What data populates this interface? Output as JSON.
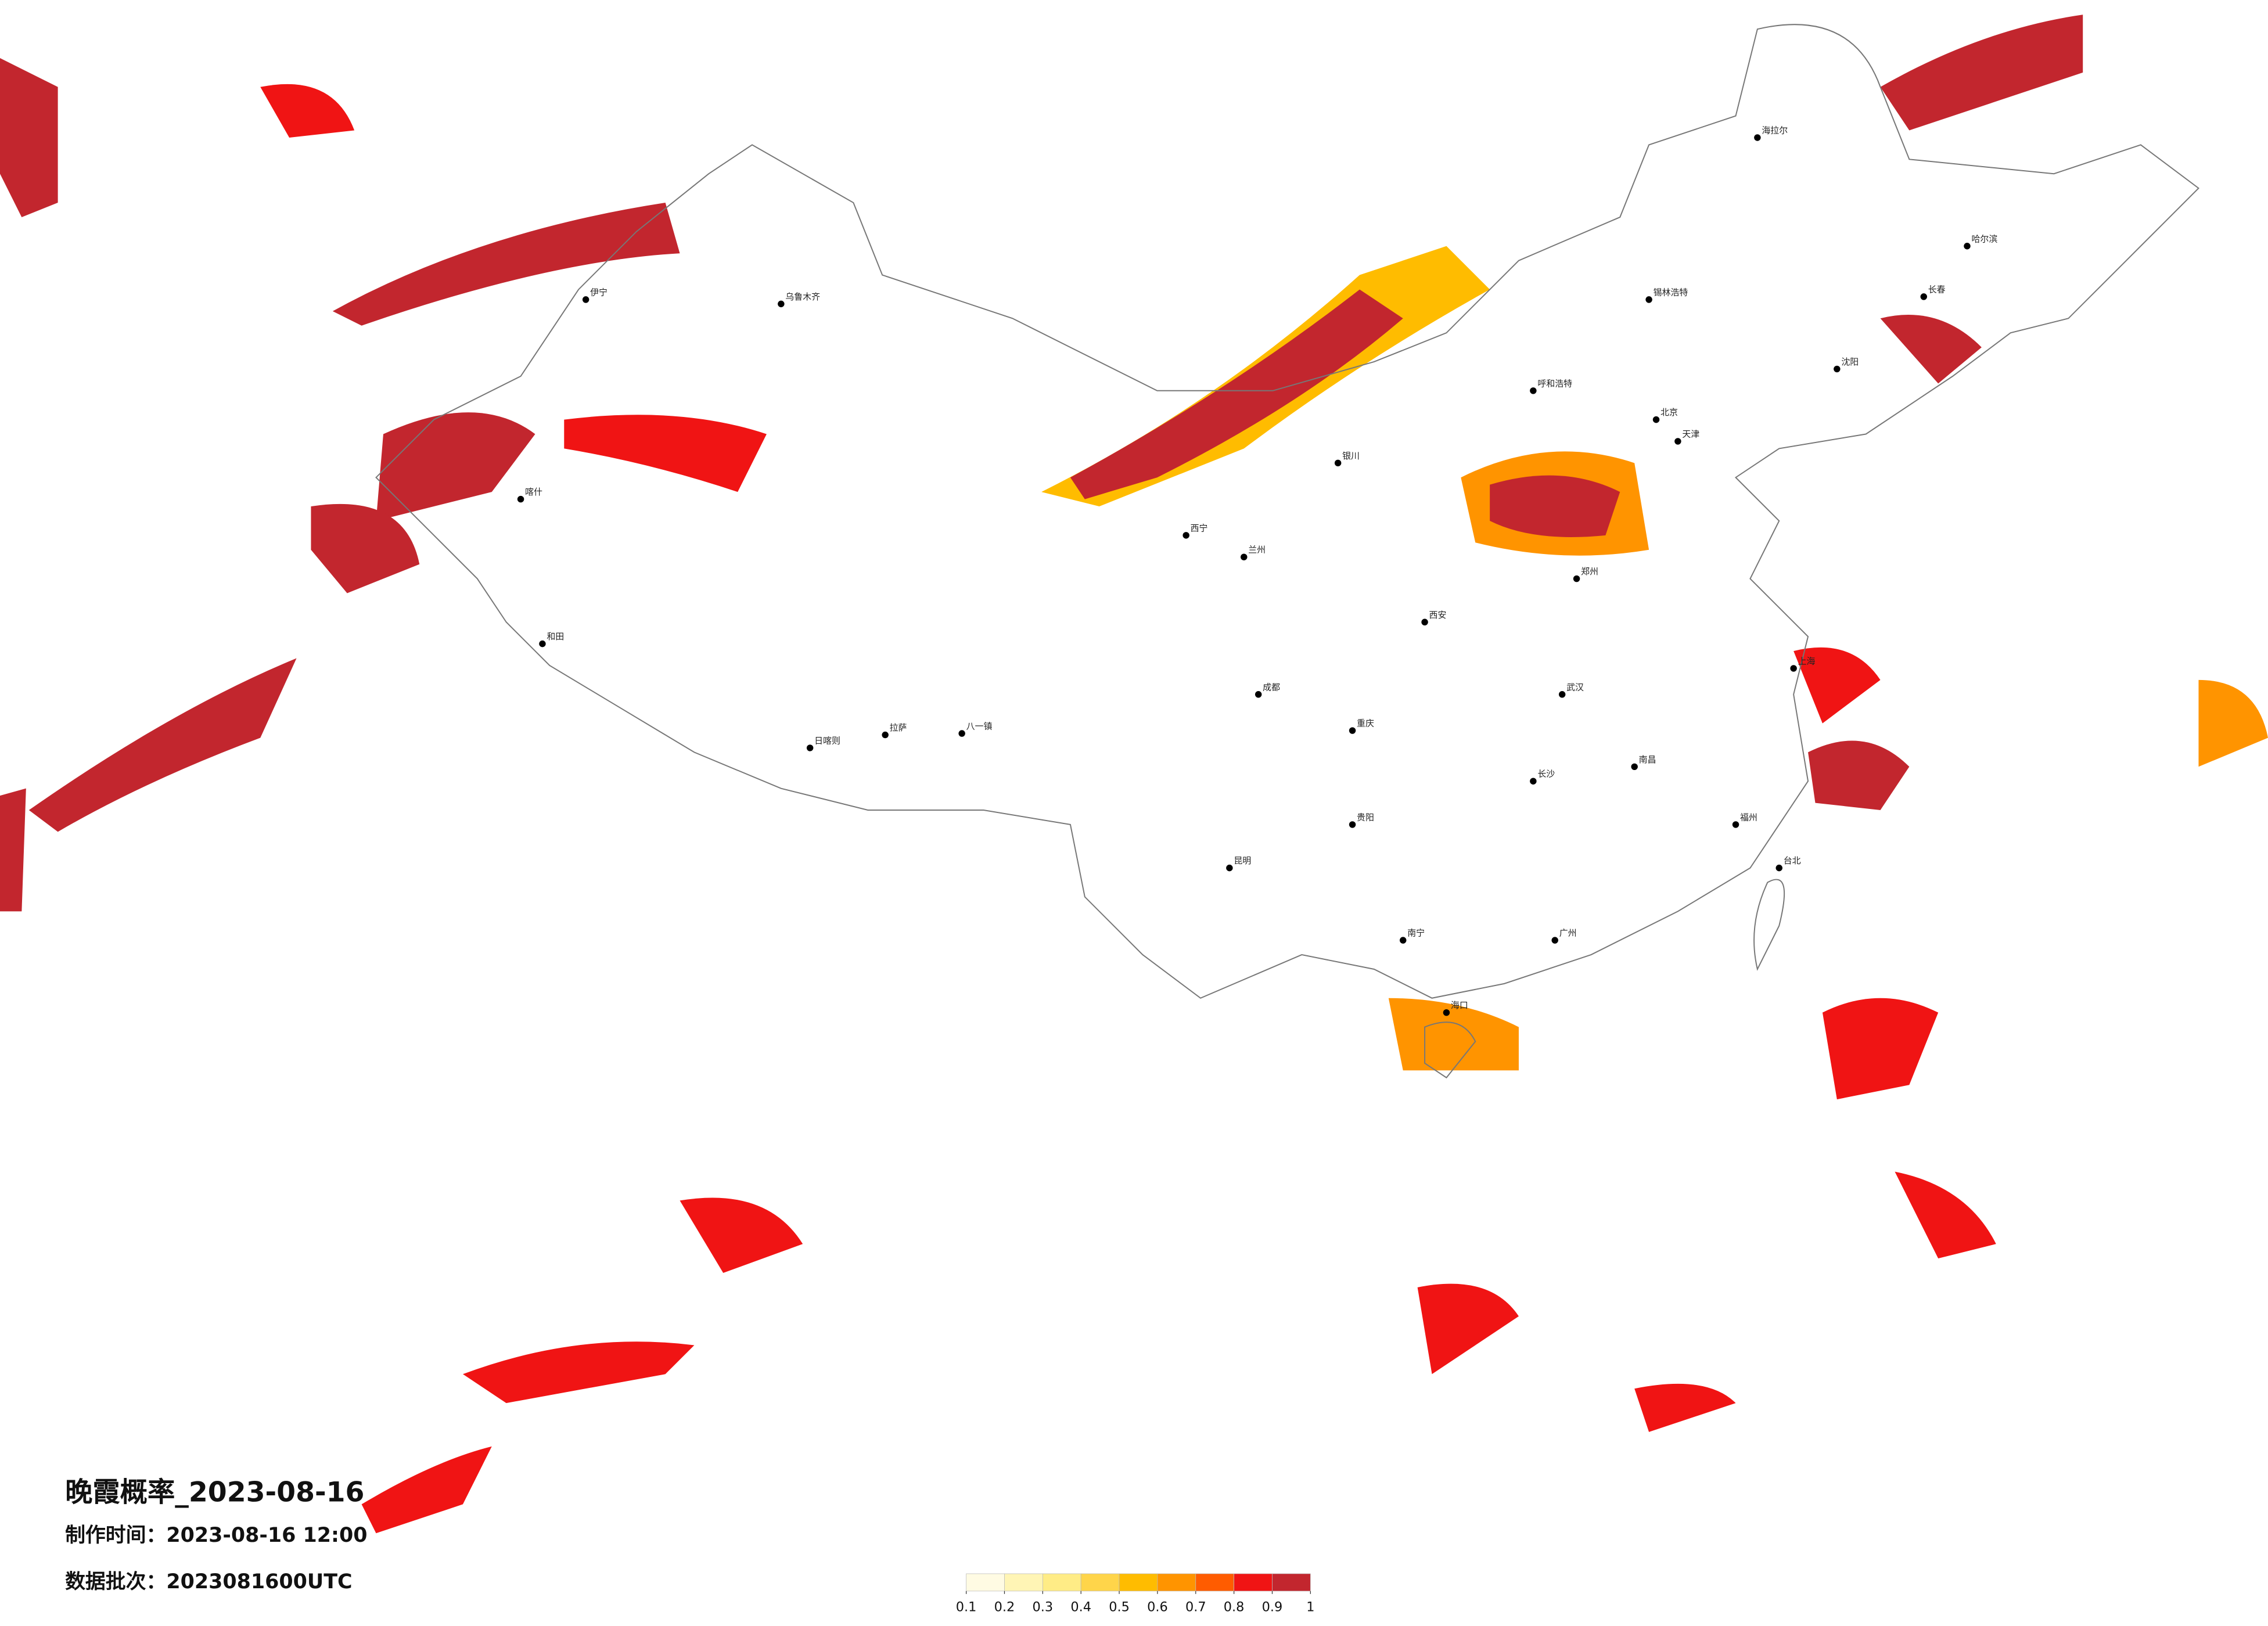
{
  "title": "晚霞概率_2023-08-16",
  "made_time": {
    "label": "制作时间：",
    "value": "2023-08-16 12:00"
  },
  "batch": {
    "label": "数据批次：",
    "value": "2023081600UTC"
  },
  "legend": {
    "colors": [
      "#fffbe3",
      "#fff5b5",
      "#ffec86",
      "#ffd54a",
      "#ffbc00",
      "#ff9400",
      "#ff5c00",
      "#f01414",
      "#c2262e"
    ],
    "ticks": [
      0.1,
      0.2,
      0.3,
      0.4,
      0.5,
      0.6,
      0.7,
      0.8,
      0.9,
      1
    ]
  },
  "cities": [
    "海拉尔",
    "伊宁",
    "乌鲁木齐",
    "喀什",
    "和田",
    "日喀则",
    "拉萨",
    "八一镇",
    "锡林浩特",
    "哈尔滨",
    "长春",
    "沈阳",
    "北京",
    "天津",
    "呼和浩特",
    "银川",
    "西宁",
    "兰州",
    "西安",
    "郑州",
    "成都",
    "重庆",
    "武汉",
    "长沙",
    "南昌",
    "上海",
    "福州",
    "台北",
    "广州",
    "南宁",
    "贵阳",
    "昆明",
    "海口"
  ]
}
